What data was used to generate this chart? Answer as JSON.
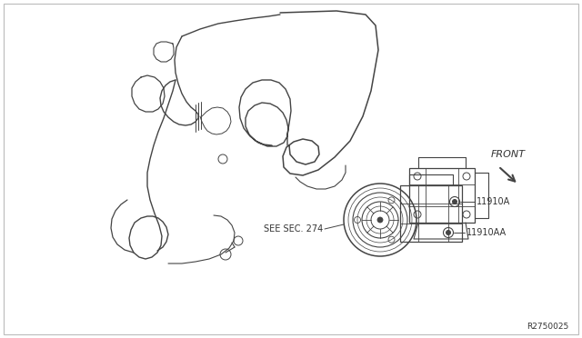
{
  "bg_color": "#ffffff",
  "line_color": "#444444",
  "text_color": "#333333",
  "ref_number": "R2750025",
  "label_11910A": "11910A",
  "label_11910AA": "11910AA",
  "label_see_sec": "SEE SEC. 274",
  "label_front": "FRONT",
  "figsize": [
    6.4,
    3.72
  ],
  "dpi": 100
}
